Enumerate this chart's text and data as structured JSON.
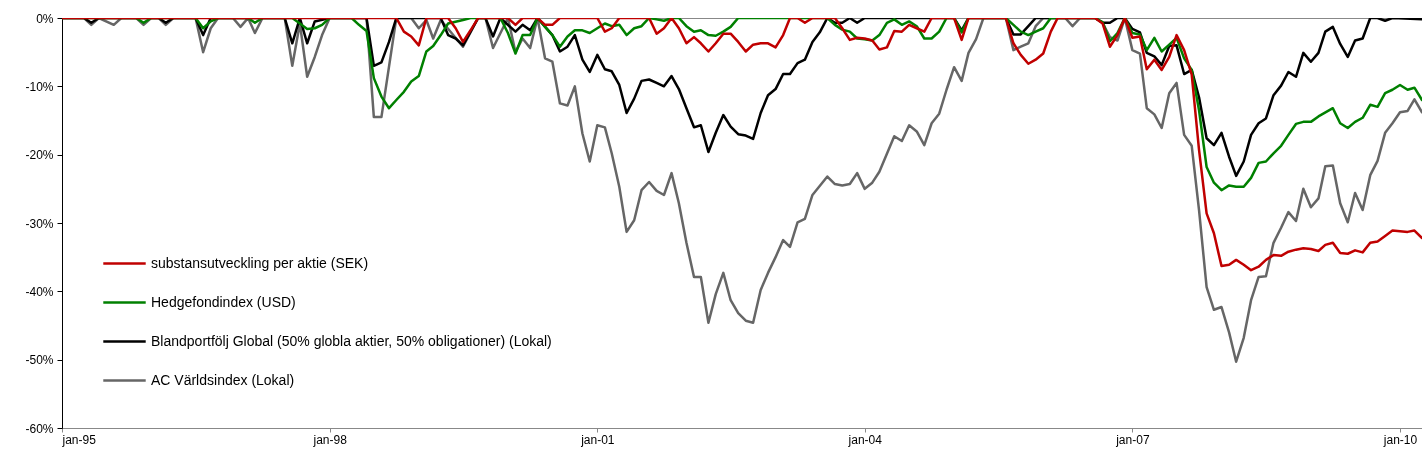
{
  "chart_data": {
    "type": "line",
    "ylim": [
      -60,
      0
    ],
    "yticks": [
      {
        "value": 0,
        "label": "0%"
      },
      {
        "value": -10,
        "label": "-10%"
      },
      {
        "value": -20,
        "label": "-20%"
      },
      {
        "value": -30,
        "label": "-30%"
      },
      {
        "value": -40,
        "label": "-40%"
      },
      {
        "value": -50,
        "label": "-50%"
      },
      {
        "value": -60,
        "label": "-60%"
      }
    ],
    "xlim": [
      "1995-01",
      "2010-04"
    ],
    "xticks": [
      {
        "value": "1995-01",
        "label": "jan-95"
      },
      {
        "value": "1998-01",
        "label": "jan-98"
      },
      {
        "value": "2001-01",
        "label": "jan-01"
      },
      {
        "value": "2004-01",
        "label": "jan-04"
      },
      {
        "value": "2007-01",
        "label": "jan-07"
      },
      {
        "value": "2010-01",
        "label": "jan-10"
      }
    ],
    "legend": "bottom left",
    "series": [
      {
        "name": "substansutveckling per aktie (SEK)",
        "color": "#c00000",
        "x": [
          "1995-01",
          "1998-10",
          "1998-11",
          "1998-12",
          "1999-01",
          "1999-02",
          "1999-05",
          "1999-06",
          "1999-07",
          "1999-08",
          "1999-09",
          "2000-01",
          "2000-02",
          "2000-03",
          "2000-05",
          "2000-06",
          "2000-07",
          "2000-08",
          "2001-01",
          "2001-02",
          "2001-03",
          "2001-04",
          "2001-08",
          "2001-09",
          "2001-10",
          "2001-11",
          "2001-12",
          "2002-01",
          "2002-02",
          "2002-03",
          "2002-04",
          "2002-05",
          "2002-06",
          "2002-07",
          "2002-08",
          "2002-09",
          "2002-10",
          "2002-11",
          "2002-12",
          "2003-01",
          "2003-02",
          "2003-03",
          "2003-04",
          "2003-05",
          "2003-06",
          "2003-09",
          "2003-10",
          "2003-11",
          "2003-12",
          "2004-01",
          "2004-02",
          "2004-03",
          "2004-04",
          "2004-05",
          "2004-06",
          "2004-07",
          "2004-08",
          "2004-09",
          "2004-10",
          "2005-01",
          "2005-02",
          "2005-03",
          "2005-08",
          "2005-09",
          "2005-10",
          "2005-11",
          "2005-12",
          "2006-01",
          "2006-02",
          "2006-03",
          "2006-08",
          "2006-09",
          "2006-10",
          "2006-11",
          "2006-12",
          "2007-01",
          "2007-02",
          "2007-03",
          "2007-04",
          "2007-05",
          "2007-06",
          "2007-07",
          "2007-08",
          "2007-09",
          "2007-10",
          "2007-11",
          "2007-12",
          "2008-01",
          "2008-02",
          "2008-03",
          "2008-04",
          "2008-05",
          "2008-06",
          "2008-07",
          "2008-08",
          "2008-09",
          "2008-10",
          "2008-11",
          "2008-12",
          "2009-01",
          "2009-02",
          "2009-03",
          "2009-04",
          "2009-05",
          "2009-06",
          "2009-07",
          "2009-08",
          "2009-09",
          "2009-10",
          "2009-11",
          "2009-12",
          "2010-02",
          "2010-03",
          "2010-04"
        ],
        "values": [
          0,
          0,
          -2,
          -2.7,
          -4,
          0,
          0,
          -1.5,
          -3.5,
          -1.8,
          0,
          0,
          -1,
          0,
          0,
          -1,
          -1,
          0,
          0,
          -2,
          -1.5,
          0,
          0,
          -2.3,
          -1.5,
          0,
          -1.5,
          -3.7,
          -2.8,
          -3.7,
          -4.9,
          -3.7,
          -2.3,
          -2.3,
          -3.5,
          -4.9,
          -3.9,
          -3.7,
          -3.7,
          -4.3,
          -2.5,
          0,
          0,
          -0.7,
          0,
          0,
          -1.5,
          -3.2,
          -2.9,
          -3,
          -3.3,
          -4.6,
          -4.3,
          -1.9,
          -2,
          -1,
          -1.5,
          -2,
          0,
          0,
          -3.2,
          0,
          0,
          -3.7,
          -5.4,
          -6.7,
          -6.1,
          -5.2,
          -2,
          0,
          0,
          -0.8,
          -4.2,
          -2.5,
          0,
          -2.9,
          -2.7,
          -7.5,
          -6.1,
          -7.6,
          -5.7,
          -2.5,
          -4.7,
          -8.3,
          -19.3,
          -28.6,
          -31.5,
          -36.3,
          -36.1,
          -35.4,
          -36.1,
          -36.9,
          -36.4,
          -35.4,
          -34.7,
          -34.8,
          -34.2,
          -33.9,
          -33.7,
          -33.8,
          -34.1,
          -33.2,
          -32.9,
          -34.4,
          -34.5,
          -34,
          -34.3,
          -32.9,
          -32.7,
          -31.9,
          -31.1,
          -31.3,
          -31.1,
          -32.2
        ]
      },
      {
        "name": "Hedgefondindex (USD)",
        "color": "#008000",
        "x": [
          "1995-01",
          "1995-11",
          "1995-12",
          "1996-01",
          "1996-07",
          "1996-08",
          "1996-09",
          "1996-10",
          "1997-02",
          "1997-03",
          "1997-04",
          "1997-08",
          "1997-09",
          "1997-10",
          "1997-11",
          "1997-12",
          "1998-01",
          "1998-04",
          "1998-05",
          "1998-06",
          "1998-07",
          "1998-08",
          "1998-09",
          "1998-10",
          "1998-11",
          "1998-12",
          "1999-01",
          "1999-02",
          "1999-03",
          "1999-04",
          "1999-05",
          "1999-07",
          "1999-08",
          "1999-12",
          "2000-01",
          "2000-02",
          "2000-03",
          "2000-04",
          "2000-05",
          "2000-06",
          "2000-07",
          "2000-08",
          "2000-09",
          "2000-10",
          "2000-11",
          "2000-12",
          "2001-01",
          "2001-02",
          "2001-03",
          "2001-04",
          "2001-05",
          "2001-06",
          "2001-07",
          "2001-08",
          "2001-09",
          "2001-10",
          "2001-11",
          "2001-12",
          "2002-01",
          "2002-02",
          "2002-03",
          "2002-04",
          "2002-05",
          "2002-06",
          "2002-07",
          "2002-08",
          "2003-08",
          "2003-09",
          "2003-10",
          "2003-11",
          "2003-12",
          "2004-01",
          "2004-02",
          "2004-03",
          "2004-04",
          "2004-05",
          "2004-06",
          "2004-07",
          "2004-08",
          "2004-09",
          "2004-10",
          "2004-11",
          "2004-12",
          "2005-01",
          "2005-02",
          "2005-03",
          "2005-08",
          "2005-09",
          "2005-10",
          "2005-11",
          "2005-12",
          "2006-01",
          "2006-02",
          "2006-08",
          "2006-09",
          "2006-10",
          "2006-11",
          "2006-12",
          "2007-01",
          "2007-02",
          "2007-03",
          "2007-04",
          "2007-05",
          "2007-06",
          "2007-07",
          "2007-08",
          "2007-09",
          "2007-10",
          "2007-11",
          "2007-12",
          "2008-01",
          "2008-02",
          "2008-03",
          "2008-04",
          "2008-05",
          "2008-06",
          "2008-07",
          "2008-08",
          "2008-09",
          "2008-10",
          "2008-11",
          "2008-12",
          "2009-01",
          "2009-02",
          "2009-04",
          "2009-05",
          "2009-06",
          "2009-07",
          "2009-08",
          "2009-09",
          "2009-10",
          "2009-11",
          "2009-12",
          "2010-01",
          "2010-02",
          "2010-03",
          "2010-04"
        ],
        "values": [
          0,
          0,
          -0.7,
          0,
          0,
          -1.5,
          -0.5,
          0,
          0,
          -0.7,
          0,
          0,
          -0.8,
          -1.6,
          -1.5,
          -1,
          0,
          0,
          -1,
          -1.9,
          -8.8,
          -11.5,
          -13.2,
          -12,
          -10.8,
          -9.3,
          -8.5,
          -4.9,
          -4.1,
          -2.5,
          -0.8,
          -0.3,
          0,
          0,
          -2.2,
          -5.2,
          -2.5,
          -2.5,
          0,
          -1.3,
          -2.5,
          -4.2,
          -2.7,
          -1.8,
          -1.8,
          -2.2,
          -1.5,
          -0.8,
          -1.2,
          -1,
          -2.5,
          -1.5,
          -1.2,
          0,
          -0.2,
          -0.4,
          0,
          0,
          -1.2,
          -2,
          -1.8,
          -2.5,
          -2.6,
          -2,
          -1.3,
          0,
          0,
          -1,
          -1.7,
          -2,
          -3,
          -3.1,
          -3.3,
          -2.5,
          -0.7,
          -0.2,
          -1,
          -0.5,
          -1.2,
          -3,
          -3,
          -2,
          0,
          0,
          -2.1,
          0,
          0,
          -1,
          -2,
          -2.5,
          -2,
          -1.5,
          0,
          0,
          -0.6,
          -3.4,
          -2.2,
          0,
          -2.2,
          -2.4,
          -4.7,
          -2.9,
          -4.9,
          -3.9,
          -2.9,
          -5.9,
          -7.6,
          -13.5,
          -21.8,
          -24.1,
          -25.2,
          -24.5,
          -24.7,
          -24.7,
          -23.4,
          -21.2,
          -21,
          -19.8,
          -18.7,
          -17.1,
          -15.5,
          -15.2,
          -15.2,
          -14.4,
          -13.2,
          -15.4,
          -16.1,
          -15.2,
          -14.6,
          -12.7,
          -13,
          -11,
          -10.5,
          -9.8,
          -10.5,
          -10.2,
          -12
        ]
      },
      {
        "name": "Blandportfölj Global (50% globla aktier, 50% obligationer) (Lokal)",
        "color": "#000000",
        "x": [
          "1995-01",
          "1995-04",
          "1995-05",
          "1995-06",
          "1996-02",
          "1996-03",
          "1996-04",
          "1996-07",
          "1996-08",
          "1996-09",
          "1997-07",
          "1997-08",
          "1997-09",
          "1997-10",
          "1997-11",
          "1998-01",
          "1998-06",
          "1998-07",
          "1998-08",
          "1998-09",
          "1998-10",
          "1999-04",
          "1999-05",
          "1999-06",
          "1999-07",
          "1999-09",
          "1999-10",
          "1999-11",
          "1999-12",
          "2000-02",
          "2000-03",
          "2000-04",
          "2000-05",
          "2000-07",
          "2000-08",
          "2000-09",
          "2000-10",
          "2000-11",
          "2000-12",
          "2001-01",
          "2001-02",
          "2001-03",
          "2001-04",
          "2001-05",
          "2001-06",
          "2001-07",
          "2001-08",
          "2001-09",
          "2001-10",
          "2001-11",
          "2001-12",
          "2002-01",
          "2002-02",
          "2002-03",
          "2002-04",
          "2002-05",
          "2002-06",
          "2002-07",
          "2002-08",
          "2002-09",
          "2002-10",
          "2002-11",
          "2002-12",
          "2003-01",
          "2003-02",
          "2003-03",
          "2003-04",
          "2003-05",
          "2003-06",
          "2003-07",
          "2003-08",
          "2003-09",
          "2003-10",
          "2003-11",
          "2003-12",
          "2004-01",
          "2005-01",
          "2005-02",
          "2005-03",
          "2005-08",
          "2005-09",
          "2005-10",
          "2005-11",
          "2005-12",
          "2006-08",
          "2006-09",
          "2006-10",
          "2006-11",
          "2006-12",
          "2007-01",
          "2007-02",
          "2007-03",
          "2007-04",
          "2007-05",
          "2007-06",
          "2007-07",
          "2007-08",
          "2007-09",
          "2007-10",
          "2007-11",
          "2007-12",
          "2008-01",
          "2008-02",
          "2008-03",
          "2008-04",
          "2008-05",
          "2008-06",
          "2008-07",
          "2008-08",
          "2008-09",
          "2008-10",
          "2008-11",
          "2008-12",
          "2009-01",
          "2009-02",
          "2009-03",
          "2009-04",
          "2009-05",
          "2009-06",
          "2009-07",
          "2009-08",
          "2009-09",
          "2009-10",
          "2009-11",
          "2009-12",
          "2010-04"
        ],
        "values": [
          0,
          0,
          -0.7,
          0,
          0,
          -0.7,
          0,
          0,
          -2.5,
          0,
          0,
          -3.7,
          0,
          -3.7,
          -0.5,
          0,
          0,
          -7,
          -6.5,
          -3.5,
          0,
          0,
          -2.5,
          -3,
          -4,
          0,
          0,
          -2.7,
          0,
          -2,
          -1,
          -1.8,
          0,
          -2.5,
          -4.9,
          -4.2,
          -2.5,
          -6.1,
          -7.9,
          -5.4,
          -7.5,
          -7.8,
          -9.8,
          -13.9,
          -11.8,
          -9.2,
          -9,
          -9.5,
          -10,
          -8.5,
          -10.4,
          -13.2,
          -16,
          -15.7,
          -19.6,
          -16.8,
          -14.2,
          -15.9,
          -17,
          -17.2,
          -17.7,
          -13.9,
          -11.3,
          -10.4,
          -8.2,
          -8.2,
          -6.6,
          -6.1,
          -3.5,
          -2.1,
          0,
          -0.7,
          -0.7,
          0,
          -0.7,
          0,
          0,
          -1.8,
          0,
          0,
          -2.4,
          -2.4,
          -1.2,
          0,
          0,
          -0.7,
          -0.7,
          0,
          0,
          -1.6,
          -2.1,
          -5.1,
          -5.6,
          -6.9,
          -4.1,
          -4,
          -8.2,
          -7.6,
          -11.6,
          -17.6,
          -18.6,
          -16.8,
          -20.3,
          -23.1,
          -21,
          -17.1,
          -15.4,
          -14.7,
          -11.3,
          -9.9,
          -7.9,
          -8.6,
          -5.1,
          -6.4,
          -5.1,
          -2,
          -1.3,
          -3.8,
          -5.7,
          -3.3,
          -3,
          0,
          0,
          -0.4,
          0,
          -0.2
        ]
      },
      {
        "name": "AC Världsindex (Lokal)",
        "color": "#666666",
        "x": [
          "1995-01",
          "1995-04",
          "1995-05",
          "1995-06",
          "1995-08",
          "1995-09",
          "1995-11",
          "1995-12",
          "1996-01",
          "1996-02",
          "1996-03",
          "1996-04",
          "1996-07",
          "1996-08",
          "1996-09",
          "1996-10",
          "1996-12",
          "1997-01",
          "1997-02",
          "1997-03",
          "1997-04",
          "1997-07",
          "1997-08",
          "1997-09",
          "1997-10",
          "1997-11",
          "1997-12",
          "1998-01",
          "1998-06",
          "1998-07",
          "1998-08",
          "1998-10",
          "1998-12",
          "1999-01",
          "1999-02",
          "1999-03",
          "1999-04",
          "1999-07",
          "1999-09",
          "1999-10",
          "1999-11",
          "2000-01",
          "2000-02",
          "2000-03",
          "2000-04",
          "2000-05",
          "2000-06",
          "2000-07",
          "2000-08",
          "2000-09",
          "2000-10",
          "2000-11",
          "2000-12",
          "2001-01",
          "2001-02",
          "2001-03",
          "2001-04",
          "2001-05",
          "2001-06",
          "2001-07",
          "2001-08",
          "2001-09",
          "2001-10",
          "2001-11",
          "2001-12",
          "2002-01",
          "2002-02",
          "2002-03",
          "2002-04",
          "2002-05",
          "2002-06",
          "2002-07",
          "2002-08",
          "2002-09",
          "2002-10",
          "2002-11",
          "2002-12",
          "2003-01",
          "2003-02",
          "2003-03",
          "2003-04",
          "2003-05",
          "2003-06",
          "2003-08",
          "2003-09",
          "2003-10",
          "2003-11",
          "2003-12",
          "2004-01",
          "2004-02",
          "2004-03",
          "2004-05",
          "2004-06",
          "2004-07",
          "2004-08",
          "2004-09",
          "2004-10",
          "2004-11",
          "2004-12",
          "2005-01",
          "2005-02",
          "2005-03",
          "2005-04",
          "2005-05",
          "2005-08",
          "2005-09",
          "2005-10",
          "2005-11",
          "2005-12",
          "2006-01",
          "2006-04",
          "2006-05",
          "2006-06",
          "2006-08",
          "2006-09",
          "2006-10",
          "2006-11",
          "2006-12",
          "2007-01",
          "2007-02",
          "2007-03",
          "2007-04",
          "2007-05",
          "2007-06",
          "2007-07",
          "2007-08",
          "2007-09",
          "2007-10",
          "2007-11",
          "2007-12",
          "2008-01",
          "2008-02",
          "2008-03",
          "2008-04",
          "2008-05",
          "2008-06",
          "2008-07",
          "2008-08",
          "2008-09",
          "2008-10",
          "2008-11",
          "2008-12",
          "2009-01",
          "2009-02",
          "2009-03",
          "2009-04",
          "2009-05",
          "2009-06",
          "2009-07",
          "2009-08",
          "2009-09",
          "2009-10",
          "2009-11",
          "2009-12",
          "2010-01",
          "2010-02",
          "2010-03",
          "2010-04"
        ],
        "values": [
          0,
          0,
          -1,
          0,
          -1,
          0,
          0,
          -1,
          0,
          0,
          -1,
          0,
          0,
          -5,
          -1.5,
          0,
          0,
          -1.3,
          0,
          -2.2,
          0,
          0,
          -7,
          -0.8,
          -8.6,
          -5.7,
          -2.5,
          0,
          0,
          -14.5,
          -14.5,
          0,
          0,
          -1.5,
          -0.3,
          -3,
          -0.3,
          -4.2,
          0,
          0,
          -4.4,
          0,
          -5,
          -3,
          -4.4,
          0,
          -5.9,
          -6.4,
          -12.5,
          -12.8,
          -10,
          -16.9,
          -21,
          -15.7,
          -16,
          -19.8,
          -24.7,
          -31.3,
          -29.6,
          -25.2,
          -24,
          -25.3,
          -25.9,
          -22.7,
          -27.1,
          -32.9,
          -37.9,
          -37.9,
          -44.6,
          -40.4,
          -37.3,
          -41.3,
          -43.2,
          -44.3,
          -44.6,
          -39.8,
          -37.3,
          -35,
          -32.5,
          -33.5,
          -29.9,
          -29.4,
          -25.9,
          -23.2,
          -24.3,
          -24.5,
          -24.3,
          -22.7,
          -25,
          -24.1,
          -22.5,
          -17.3,
          -18,
          -15.7,
          -16.6,
          -18.6,
          -15.4,
          -14,
          -10.5,
          -7.2,
          -9.2,
          -5.1,
          -3.1,
          0,
          0,
          -4.7,
          -4.2,
          -3.7,
          -1.2,
          0,
          0,
          -1.2,
          0,
          0,
          -0.7,
          -2.8,
          -3.3,
          0,
          -4.7,
          -5.2,
          -13.2,
          -14.1,
          -16.1,
          -11,
          -9.5,
          -17.1,
          -18.7,
          -28.1,
          -39.4,
          -42.7,
          -42.3,
          -46,
          -50.3,
          -46.8,
          -41.3,
          -37.9,
          -37.8,
          -32.9,
          -30.7,
          -28.4,
          -29.7,
          -25,
          -27.7,
          -26.4,
          -21.7,
          -21.6,
          -27.1,
          -29.9,
          -25.6,
          -28.1,
          -23,
          -20.9,
          -16.8,
          -15.4,
          -13.8,
          -13.6,
          -11.9,
          -13.8
        ]
      }
    ]
  }
}
